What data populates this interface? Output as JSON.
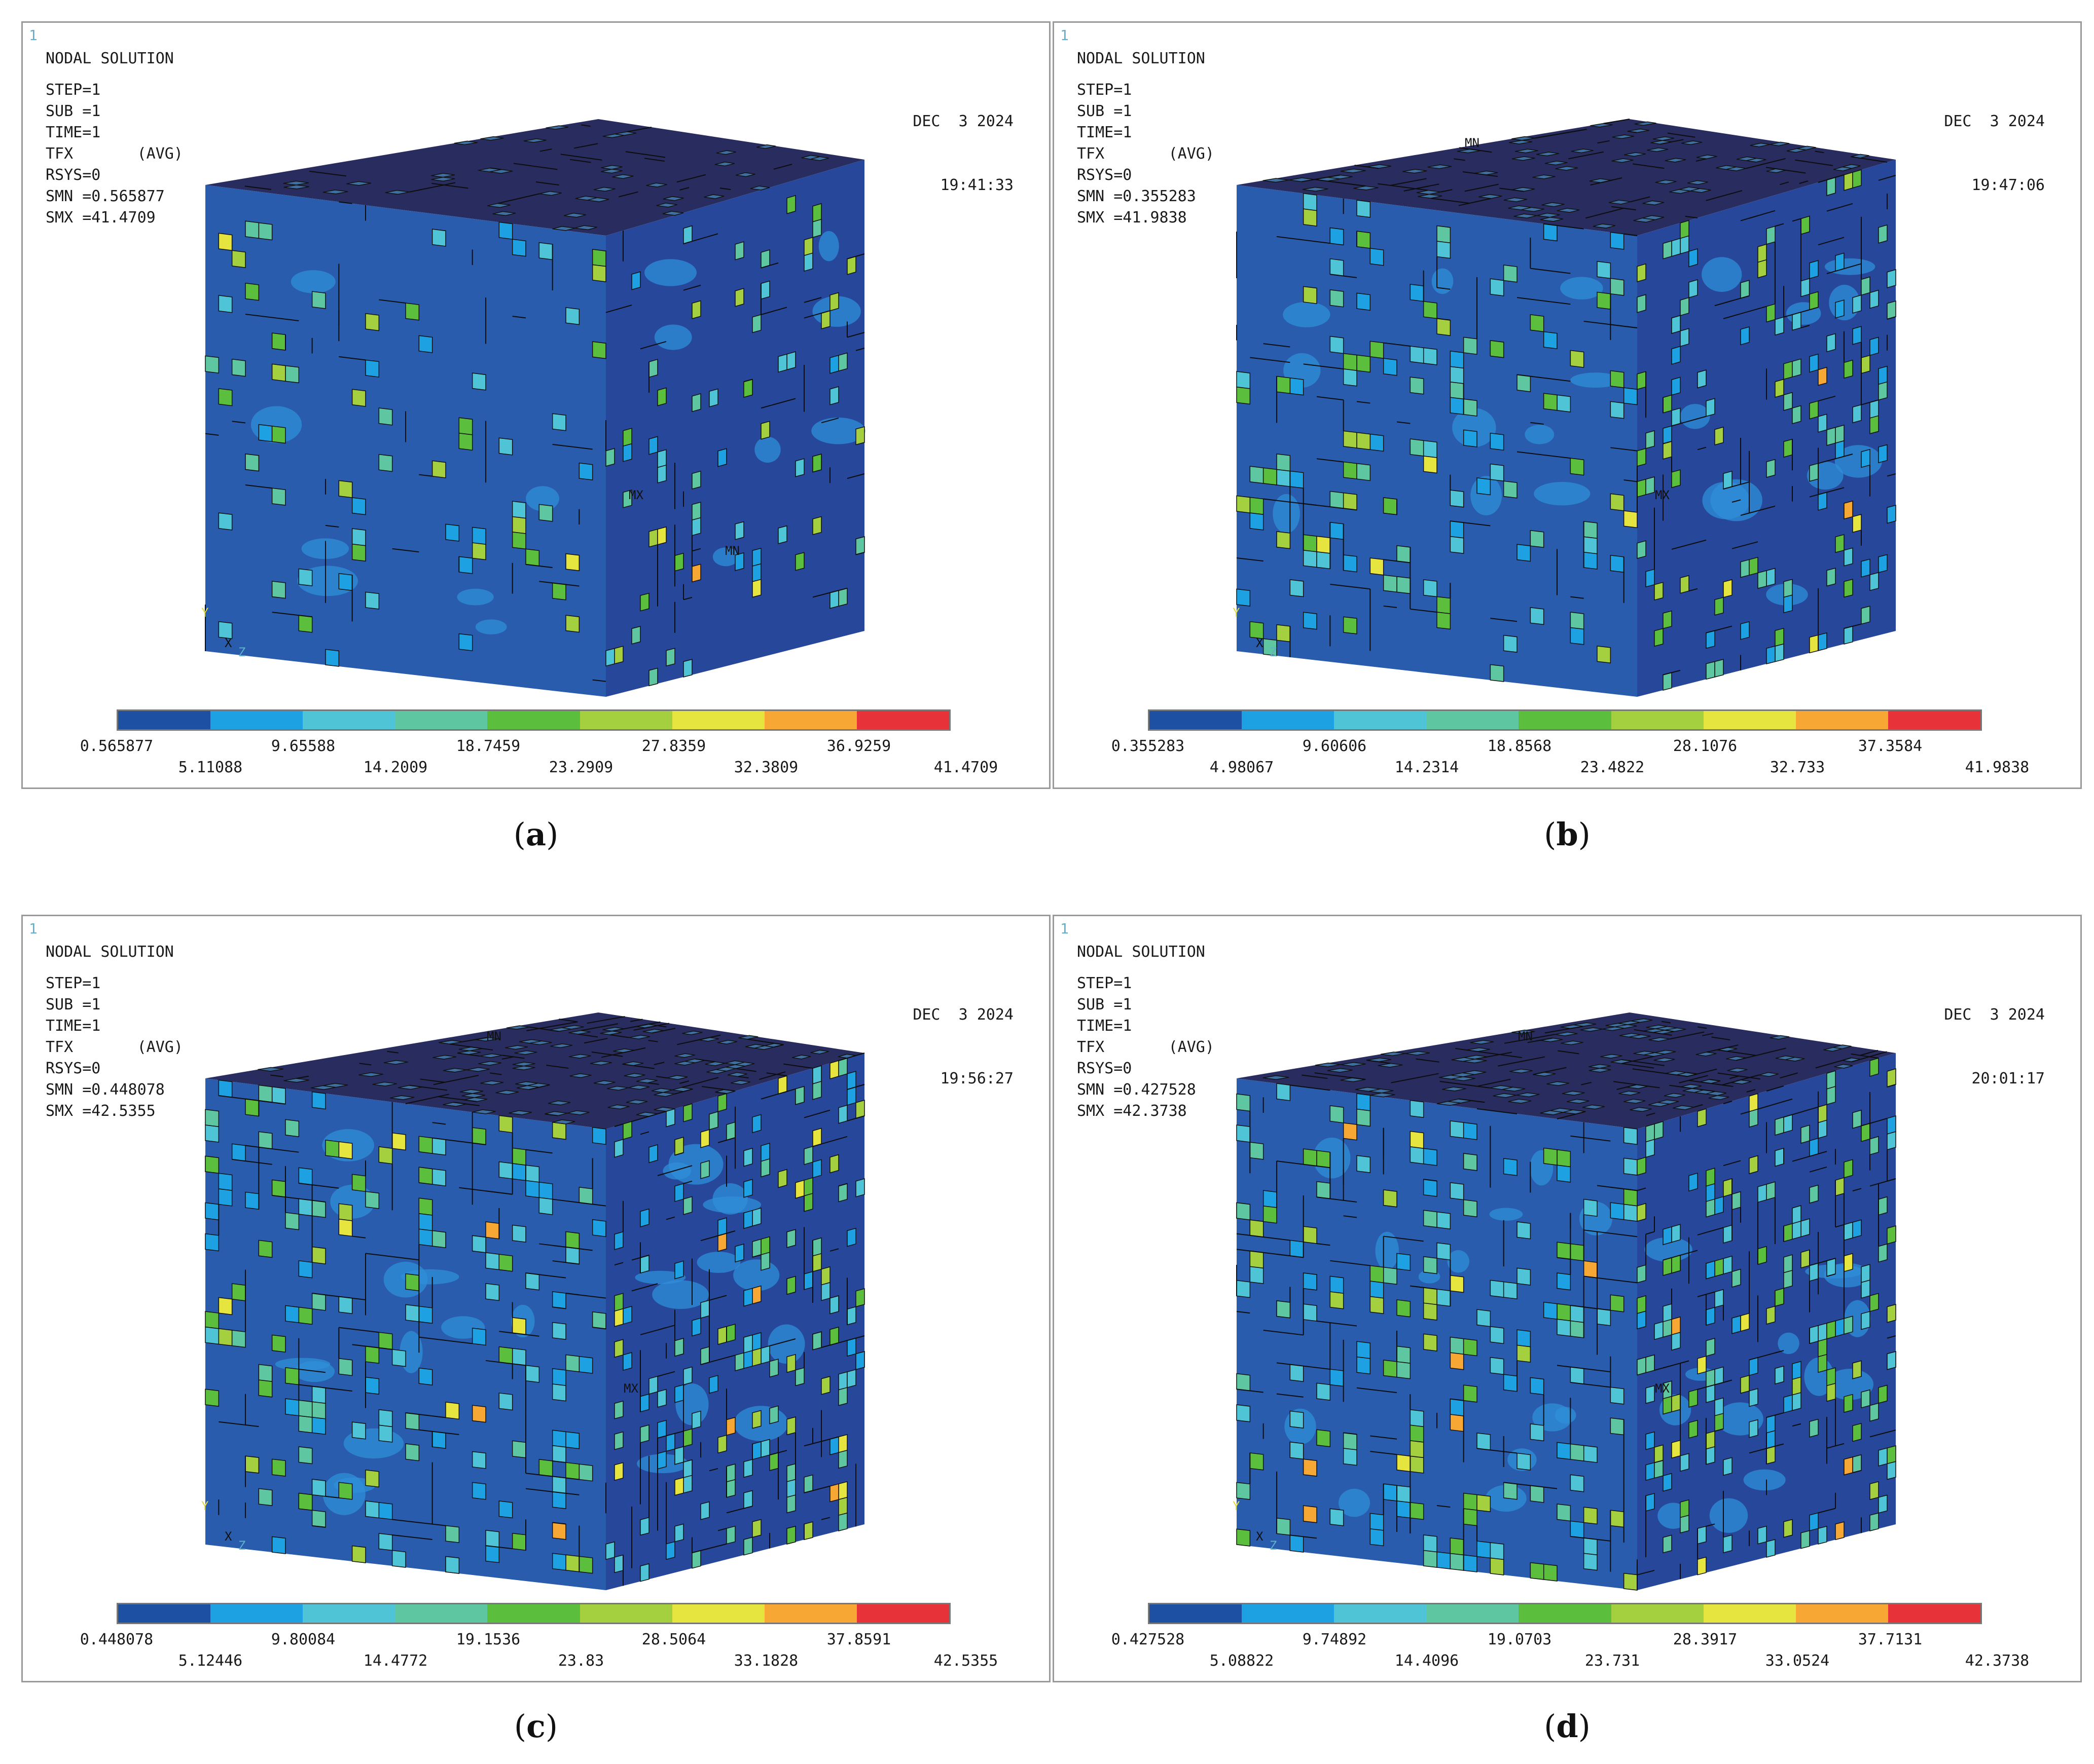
{
  "colormap": [
    "#1d4fa3",
    "#1ea1e3",
    "#4fc4d6",
    "#5ec6a0",
    "#5bbf3d",
    "#a4cf3f",
    "#e6e540",
    "#f7a733",
    "#e8323a"
  ],
  "panels": [
    {
      "id": "a",
      "panel_number": "1",
      "title": "NODAL SOLUTION",
      "step": "STEP=1",
      "sub": "SUB =1",
      "time": "TIME=1",
      "tfx": "TFX       (AVG)",
      "rsys": "RSYS=0",
      "smn": "SMN =0.565877",
      "smx": "SMX =41.4709",
      "date": "DEC  3 2024",
      "clock": "19:41:33",
      "markers": {
        "mx": "MX",
        "mn": "MN",
        "axis_y": "Y",
        "axis_x": "X",
        "axis_z": "Z"
      },
      "legend_top": [
        "0.565877",
        "9.65588",
        "18.7459",
        "27.8359",
        "36.9259"
      ],
      "legend_bottom": [
        "5.11088",
        "14.2009",
        "23.2909",
        "32.3809",
        "41.4709"
      ],
      "caption": "a"
    },
    {
      "id": "b",
      "panel_number": "1",
      "title": "NODAL SOLUTION",
      "step": "STEP=1",
      "sub": "SUB =1",
      "time": "TIME=1",
      "tfx": "TFX       (AVG)",
      "rsys": "RSYS=0",
      "smn": "SMN =0.355283",
      "smx": "SMX =41.9838",
      "date": "DEC  3 2024",
      "clock": "19:47:06",
      "markers": {
        "mx": "MX",
        "mn": "MN",
        "axis_y": "Y",
        "axis_x": "X",
        "axis_z": "Z"
      },
      "legend_top": [
        "0.355283",
        "9.60606",
        "18.8568",
        "28.1076",
        "37.3584"
      ],
      "legend_bottom": [
        "4.98067",
        "14.2314",
        "23.4822",
        "32.733",
        "41.9838"
      ],
      "caption": "b"
    },
    {
      "id": "c",
      "panel_number": "1",
      "title": "NODAL SOLUTION",
      "step": "STEP=1",
      "sub": "SUB =1",
      "time": "TIME=1",
      "tfx": "TFX       (AVG)",
      "rsys": "RSYS=0",
      "smn": "SMN =0.448078",
      "smx": "SMX =42.5355",
      "date": "DEC  3 2024",
      "clock": "19:56:27",
      "markers": {
        "mx": "MX",
        "mn": "MN",
        "axis_y": "Y",
        "axis_x": "X",
        "axis_z": "Z"
      },
      "legend_top": [
        "0.448078",
        "9.80084",
        "19.1536",
        "28.5064",
        "37.8591"
      ],
      "legend_bottom": [
        "5.12446",
        "14.4772",
        "23.83",
        "33.1828",
        "42.5355"
      ],
      "caption": "c"
    },
    {
      "id": "d",
      "panel_number": "1",
      "title": "NODAL SOLUTION",
      "step": "STEP=1",
      "sub": "SUB =1",
      "time": "TIME=1",
      "tfx": "TFX       (AVG)",
      "rsys": "RSYS=0",
      "smn": "SMN =0.427528",
      "smx": "SMX =42.3738",
      "date": "DEC  3 2024",
      "clock": "20:01:17",
      "markers": {
        "mx": "MX",
        "mn": "MN",
        "axis_y": "Y",
        "axis_x": "X",
        "axis_z": "Z"
      },
      "legend_top": [
        "0.427528",
        "9.74892",
        "19.0703",
        "28.3917",
        "37.7131"
      ],
      "legend_bottom": [
        "5.08822",
        "14.4096",
        "23.731",
        "33.0524",
        "42.3738"
      ],
      "caption": "d"
    }
  ]
}
